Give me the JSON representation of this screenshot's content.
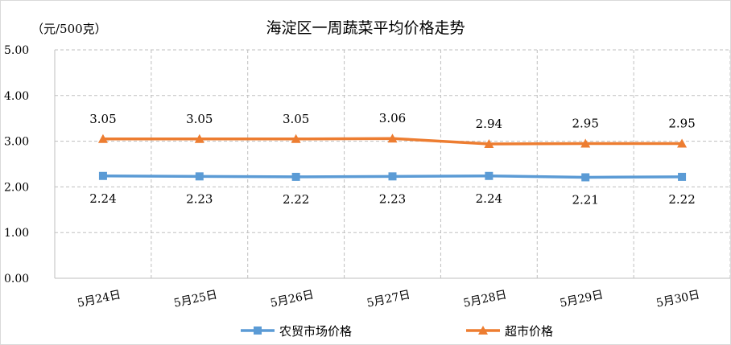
{
  "chart_data": {
    "type": "line",
    "title": "海淀区一周蔬菜平均价格走势",
    "unit_label": "（元/500克）",
    "categories": [
      "5月24日",
      "5月25日",
      "5月26日",
      "5月27日",
      "5月28日",
      "5月29日",
      "5月30日"
    ],
    "y_ticks": [
      "0.00",
      "1.00",
      "2.00",
      "3.00",
      "4.00",
      "5.00"
    ],
    "ylim": [
      0,
      5
    ],
    "grid": true,
    "legend_position": "bottom",
    "series": [
      {
        "name": "农贸市场价格",
        "color": "#5b9bd5",
        "marker": "square",
        "values": [
          2.24,
          2.23,
          2.22,
          2.23,
          2.24,
          2.21,
          2.22
        ],
        "labels": [
          "2.24",
          "2.23",
          "2.22",
          "2.23",
          "2.24",
          "2.21",
          "2.22"
        ],
        "label_position": "below"
      },
      {
        "name": "超市价格",
        "color": "#ed7d31",
        "marker": "triangle",
        "values": [
          3.05,
          3.05,
          3.05,
          3.06,
          2.94,
          2.95,
          2.95
        ],
        "labels": [
          "3.05",
          "3.05",
          "3.05",
          "3.06",
          "2.94",
          "2.95",
          "2.95"
        ],
        "label_position": "above"
      }
    ]
  }
}
